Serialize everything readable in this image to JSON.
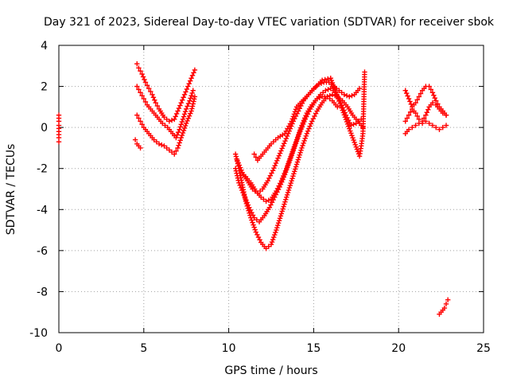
{
  "chart_data": {
    "type": "scatter",
    "title": "Day 321 of 2023, Sidereal Day-to-day VTEC variation (SDTVAR) for receiver sbok",
    "xlabel": "GPS time / hours",
    "ylabel": "SDTVAR / TECUs",
    "xlim": [
      0,
      25
    ],
    "ylim": [
      -10,
      4
    ],
    "xticks": [
      0,
      5,
      10,
      15,
      20,
      25
    ],
    "yticks": [
      -10,
      -8,
      -6,
      -4,
      -2,
      0,
      2,
      4
    ],
    "grid": true,
    "marker": "+",
    "color": "#ff0000",
    "series": [
      {
        "name": "start",
        "x": [
          0.0,
          0.0,
          0.0,
          0.0,
          0.0,
          0.0
        ],
        "y": [
          0.6,
          0.3,
          0.1,
          -0.2,
          -0.5,
          -0.7
        ]
      },
      {
        "name": "morning-a",
        "x": [
          4.6,
          4.7,
          4.9,
          5.1,
          5.3,
          5.5,
          5.7,
          5.9,
          6.2,
          6.5,
          6.8,
          7.0,
          7.2,
          7.4,
          7.6,
          7.8,
          8.0
        ],
        "y": [
          3.1,
          2.9,
          2.6,
          2.2,
          1.9,
          1.6,
          1.2,
          0.9,
          0.5,
          0.3,
          0.4,
          0.8,
          1.2,
          1.6,
          2.0,
          2.4,
          2.8
        ]
      },
      {
        "name": "morning-b",
        "x": [
          4.6,
          4.8,
          5.0,
          5.2,
          5.5,
          5.8,
          6.1,
          6.4,
          6.7,
          6.9,
          7.1,
          7.3,
          7.5,
          7.7,
          7.9
        ],
        "y": [
          2.0,
          1.7,
          1.4,
          1.1,
          0.8,
          0.5,
          0.2,
          0.0,
          -0.3,
          -0.5,
          -0.1,
          0.4,
          0.9,
          1.3,
          1.8
        ]
      },
      {
        "name": "morning-c",
        "x": [
          4.6,
          4.8,
          5.0,
          5.3,
          5.6,
          5.9,
          6.2,
          6.5,
          6.8,
          7.0,
          7.2,
          7.5,
          7.8,
          8.0
        ],
        "y": [
          0.6,
          0.3,
          0.0,
          -0.3,
          -0.6,
          -0.8,
          -0.9,
          -1.1,
          -1.3,
          -1.0,
          -0.5,
          0.2,
          0.8,
          1.5
        ]
      },
      {
        "name": "morning-d",
        "x": [
          4.5,
          4.6,
          4.7,
          4.8
        ],
        "y": [
          -0.6,
          -0.8,
          -0.9,
          -1.0
        ]
      },
      {
        "name": "afternoon-a",
        "x": [
          10.4,
          10.6,
          10.8,
          11.0,
          11.3,
          11.6,
          11.9,
          12.2,
          12.5,
          12.8,
          13.1,
          13.4,
          13.7,
          14.0,
          14.3,
          14.6,
          14.9,
          15.2,
          15.5,
          15.8,
          16.1,
          16.4,
          16.7,
          17.0,
          17.3,
          17.6,
          17.9
        ],
        "y": [
          -1.3,
          -2.0,
          -2.8,
          -3.6,
          -4.4,
          -5.1,
          -5.6,
          -5.9,
          -5.7,
          -5.0,
          -4.2,
          -3.4,
          -2.6,
          -1.8,
          -1.0,
          -0.3,
          0.3,
          0.8,
          1.2,
          1.5,
          1.6,
          1.5,
          1.3,
          1.0,
          0.6,
          0.3,
          0.0
        ]
      },
      {
        "name": "afternoon-b",
        "x": [
          10.4,
          10.6,
          10.9,
          11.2,
          11.5,
          11.8,
          12.1,
          12.4,
          12.7,
          13.0,
          13.3,
          13.6,
          13.9,
          14.2,
          14.5,
          14.8,
          15.1,
          15.4,
          15.7,
          16.0,
          16.3,
          16.6,
          16.9,
          17.2,
          17.5,
          17.8
        ],
        "y": [
          -2.0,
          -2.7,
          -3.3,
          -3.9,
          -4.4,
          -4.6,
          -4.3,
          -3.9,
          -3.4,
          -2.9,
          -2.3,
          -1.6,
          -0.9,
          -0.2,
          0.4,
          0.9,
          1.3,
          1.6,
          1.8,
          1.9,
          1.7,
          1.2,
          0.6,
          0.1,
          0.2,
          0.4
        ]
      },
      {
        "name": "afternoon-c",
        "x": [
          10.5,
          10.8,
          11.1,
          11.4,
          11.7,
          12.0,
          12.3,
          12.6,
          12.9,
          13.2,
          13.5,
          13.8,
          14.1,
          14.4,
          14.7,
          15.0,
          15.3,
          15.6,
          15.9,
          16.2,
          16.5,
          16.8,
          17.1,
          17.4,
          17.7
        ],
        "y": [
          -1.6,
          -2.2,
          -2.6,
          -3.0,
          -3.2,
          -3.0,
          -2.6,
          -2.1,
          -1.5,
          -0.9,
          -0.3,
          0.3,
          0.8,
          1.3,
          1.6,
          1.9,
          2.1,
          2.2,
          2.2,
          2.0,
          1.8,
          1.6,
          1.5,
          1.6,
          1.9
        ]
      },
      {
        "name": "afternoon-d",
        "x": [
          11.0,
          11.3,
          11.6,
          11.9,
          12.2,
          12.5,
          12.8,
          13.1,
          13.4,
          13.7,
          14.0,
          14.3,
          14.6,
          14.9,
          15.2,
          15.5,
          15.8,
          16.1,
          16.4
        ],
        "y": [
          -2.4,
          -2.7,
          -3.1,
          -3.4,
          -3.6,
          -3.5,
          -3.1,
          -2.6,
          -2.0,
          -1.3,
          -0.6,
          0.1,
          0.7,
          1.1,
          1.4,
          1.5,
          1.5,
          1.3,
          1.0
        ]
      },
      {
        "name": "afternoon-e",
        "x": [
          11.5,
          11.7,
          12.5,
          12.9,
          13.3,
          13.7,
          14.0,
          15.5,
          16.0,
          17.7,
          17.8,
          17.9,
          18.0
        ],
        "y": [
          -1.3,
          -1.6,
          -0.8,
          -0.5,
          -0.3,
          0.3,
          1.0,
          2.3,
          2.4,
          -1.4,
          -0.9,
          -0.3,
          2.7
        ]
      },
      {
        "name": "evening-a",
        "x": [
          20.4,
          20.6,
          20.8,
          21.0,
          21.2,
          21.4,
          21.6,
          21.8,
          22.0,
          22.2,
          22.4,
          22.6,
          22.8
        ],
        "y": [
          1.8,
          1.4,
          1.0,
          1.2,
          1.5,
          1.8,
          2.0,
          2.0,
          1.7,
          1.3,
          1.0,
          0.8,
          0.6
        ]
      },
      {
        "name": "evening-b",
        "x": [
          20.4,
          20.6,
          20.8,
          21.0,
          21.2,
          21.4,
          21.6,
          21.8,
          22.0,
          22.2,
          22.4,
          22.6,
          22.8
        ],
        "y": [
          0.3,
          0.6,
          0.9,
          0.7,
          0.4,
          0.3,
          0.6,
          1.0,
          1.2,
          1.1,
          0.9,
          0.7,
          0.6
        ]
      },
      {
        "name": "evening-c",
        "x": [
          20.4,
          20.6,
          20.8,
          21.0,
          21.2,
          21.4,
          21.6,
          21.8,
          22.0,
          22.2,
          22.4,
          22.6,
          22.8
        ],
        "y": [
          -0.3,
          -0.1,
          0.0,
          0.1,
          0.2,
          0.2,
          0.3,
          0.2,
          0.1,
          0.0,
          -0.1,
          0.0,
          0.1
        ]
      },
      {
        "name": "late",
        "x": [
          22.4,
          22.5,
          22.6,
          22.7,
          22.8,
          22.9
        ],
        "y": [
          -9.1,
          -9.0,
          -8.9,
          -8.8,
          -8.6,
          -8.4
        ]
      }
    ]
  }
}
